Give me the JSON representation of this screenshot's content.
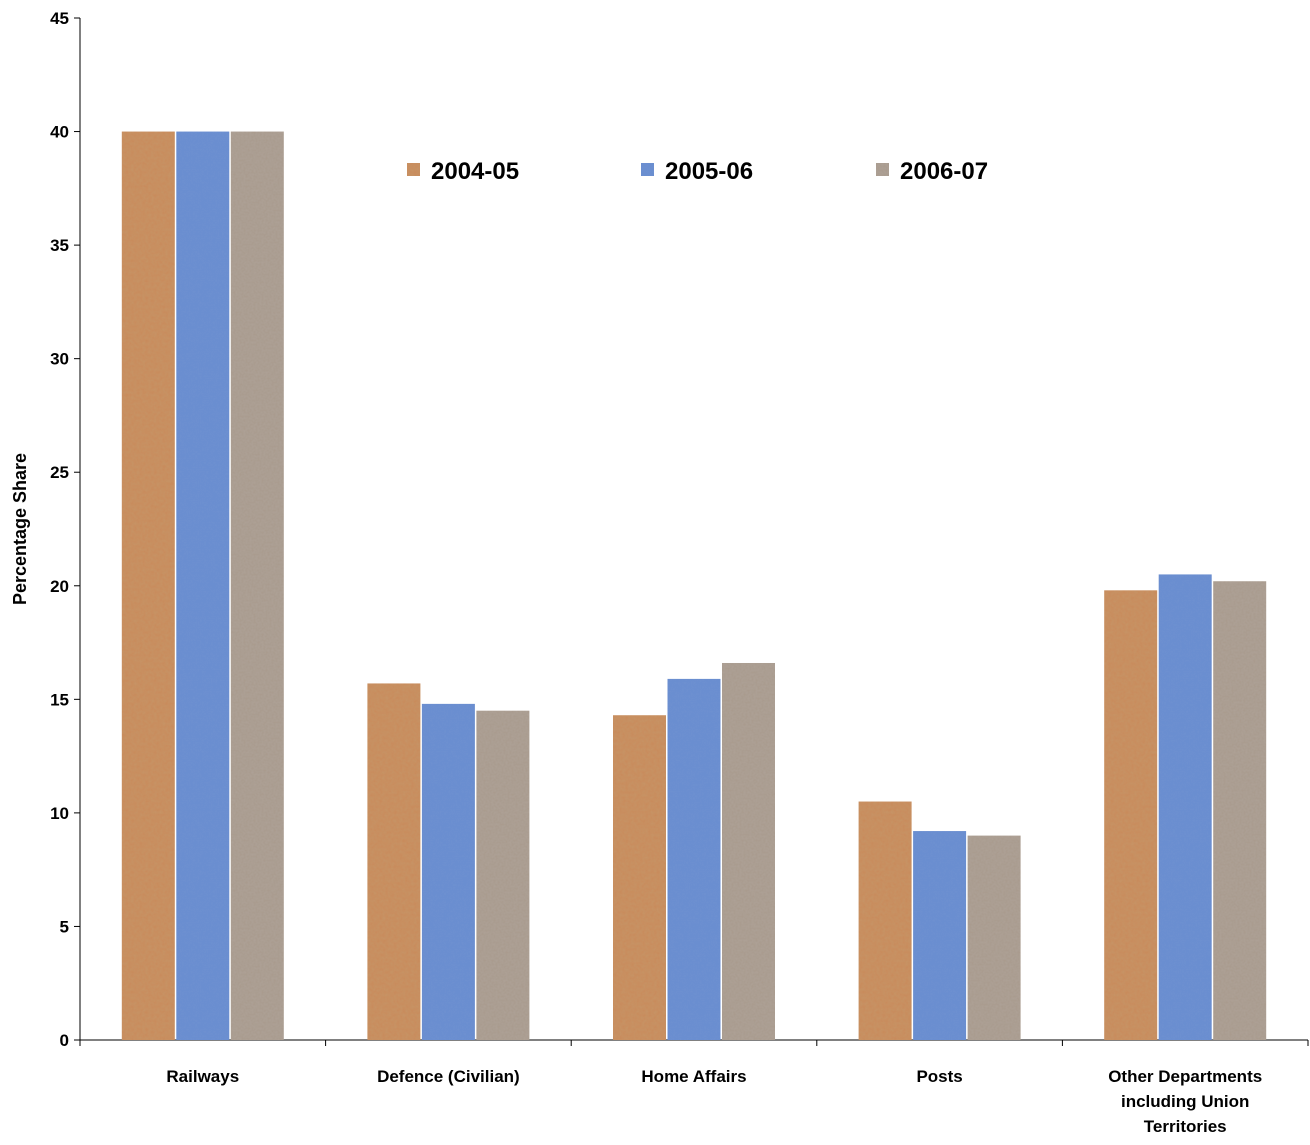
{
  "chart_data": {
    "type": "bar",
    "categories": [
      [
        "Railways"
      ],
      [
        "Defence (Civilian)"
      ],
      [
        "Home Affairs"
      ],
      [
        "Posts"
      ],
      [
        "Other Departments",
        "including Union",
        "Territories"
      ]
    ],
    "series": [
      {
        "name": "2004-05",
        "values": [
          40.0,
          15.7,
          14.3,
          10.5,
          19.8
        ],
        "color": "#c98a5a"
      },
      {
        "name": "2005-06",
        "values": [
          40.0,
          14.8,
          15.9,
          9.2,
          20.5
        ],
        "color": "#6a8ed0"
      },
      {
        "name": "2006-07",
        "values": [
          40.0,
          14.5,
          16.6,
          9.0,
          20.2
        ],
        "color": "#a8998b"
      }
    ],
    "ylabel": "Percentage Share",
    "xlabel": "",
    "ylim": [
      0,
      45
    ],
    "yticks": [
      0,
      5,
      10,
      15,
      20,
      25,
      30,
      35,
      40,
      45
    ],
    "grid": false,
    "legend_position": "top"
  }
}
